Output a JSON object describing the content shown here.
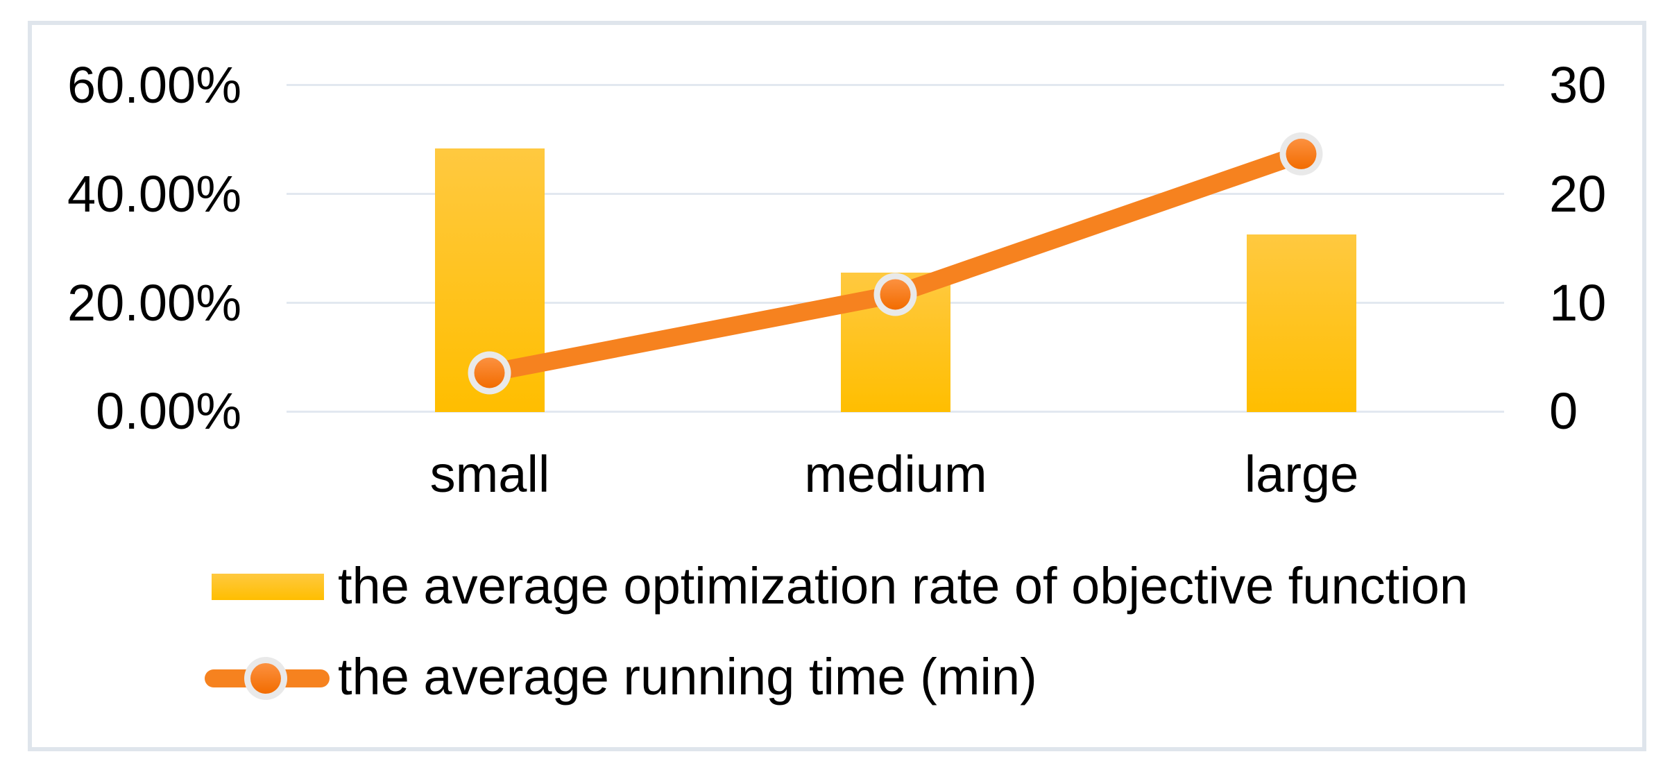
{
  "chart_data": {
    "type": "combo",
    "categories": [
      "small",
      "medium",
      "large"
    ],
    "series": [
      {
        "name": "the average optimization rate of objective function",
        "type": "bar",
        "axis": "left",
        "unit": "%",
        "values": [
          48.4,
          25.6,
          32.6
        ]
      },
      {
        "name": "the average running time (min)",
        "type": "line",
        "axis": "right",
        "unit": "min",
        "values": [
          3.6,
          10.8,
          23.7
        ]
      }
    ],
    "left_axis": {
      "ticks": [
        "60.00%",
        "40.00%",
        "20.00%",
        "0.00%"
      ],
      "min": 0,
      "max": 60,
      "step": 20,
      "format": "percent"
    },
    "right_axis": {
      "ticks": [
        "30",
        "20",
        "10",
        "0"
      ],
      "min": 0,
      "max": 30,
      "step": 10
    },
    "grid": true,
    "legend_position": "bottom-left"
  },
  "legend": {
    "items": [
      {
        "label": "the average optimization rate of objective function",
        "swatch": "bar"
      },
      {
        "label": "the average running time (min)",
        "swatch": "line-marker"
      }
    ]
  },
  "colors": {
    "bar_top": "#FFC940",
    "bar_bottom": "#FFBE00",
    "line": "#F6821F",
    "marker_ring": "#E9E9E9",
    "marker_top": "#FC9140",
    "marker_bottom": "#F26C00",
    "gridline": "#E2E8F0",
    "frame_border": "#DFE5EC",
    "text": "#000000"
  }
}
